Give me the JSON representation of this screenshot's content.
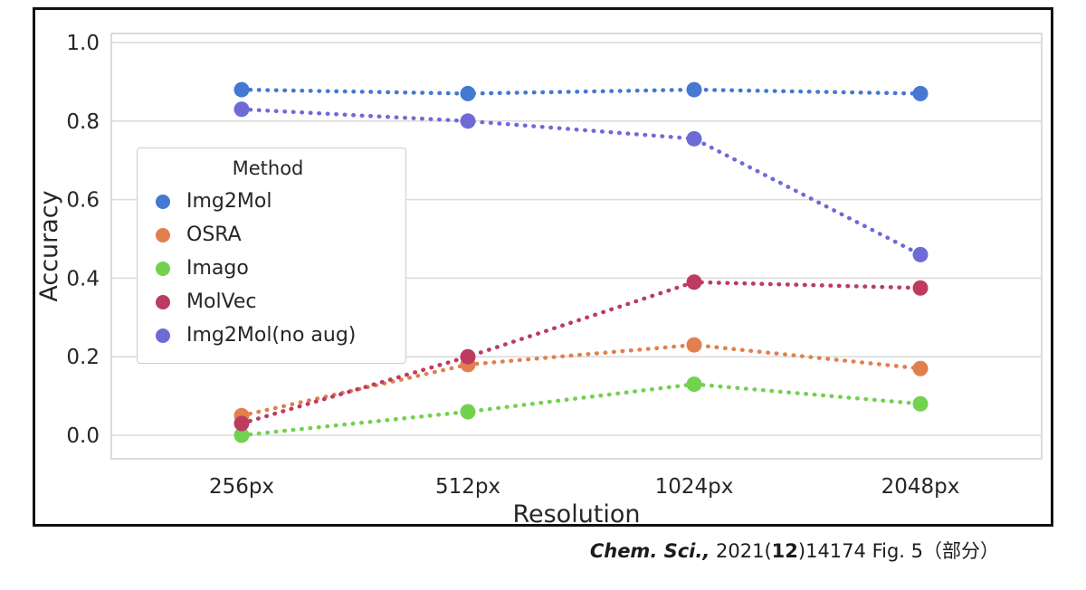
{
  "chart_data": {
    "type": "line",
    "title": "",
    "xlabel": "Resolution",
    "ylabel": "Accuracy",
    "x_categories": [
      "256px",
      "512px",
      "1024px",
      "2048px"
    ],
    "ylim": [
      0.0,
      1.0
    ],
    "yticks": [
      0.0,
      0.2,
      0.4,
      0.6,
      0.8,
      1.0
    ],
    "grid": "horizontal",
    "line_style": "dotted",
    "marker": "circle",
    "legend_title": "Method",
    "legend_position": "upper-left-inside",
    "series": [
      {
        "name": "Img2Mol",
        "color": "#4478d2",
        "values": [
          0.88,
          0.87,
          0.88,
          0.87
        ]
      },
      {
        "name": "OSRA",
        "color": "#e0804e",
        "values": [
          0.05,
          0.18,
          0.23,
          0.17
        ]
      },
      {
        "name": "Imago",
        "color": "#72d14f",
        "values": [
          0.0,
          0.06,
          0.13,
          0.08
        ]
      },
      {
        "name": "MolVec",
        "color": "#bd3b60",
        "values": [
          0.03,
          0.2,
          0.39,
          0.375
        ]
      },
      {
        "name": "Img2Mol(no aug)",
        "color": "#6e6bd6",
        "values": [
          0.83,
          0.8,
          0.755,
          0.46
        ]
      }
    ]
  },
  "caption": {
    "journal": "Chem. Sci.,",
    "mid": " 2021(",
    "volume": "12",
    "suffix": ")14174 Fig. 5（部分）"
  }
}
